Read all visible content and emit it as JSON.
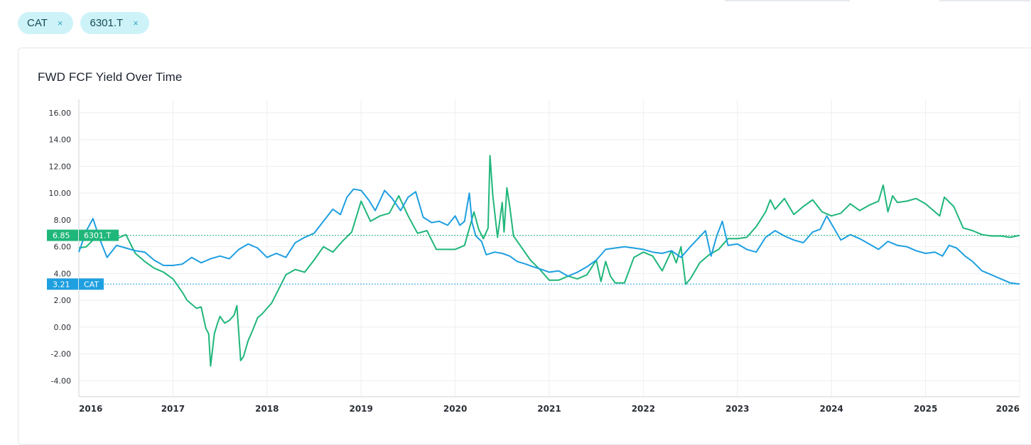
{
  "filters": {
    "chips": [
      {
        "label": "CAT"
      },
      {
        "label": "6301.T"
      }
    ],
    "close_glyph": "×"
  },
  "card": {
    "title": "FWD FCF Yield Over Time"
  },
  "chart_data": {
    "type": "line",
    "title": "FWD FCF Yield Over Time",
    "xlabel": "",
    "ylabel": "",
    "x_ticks": [
      "2016",
      "2017",
      "2018",
      "2019",
      "2020",
      "2021",
      "2022",
      "2023",
      "2024",
      "2025",
      "2026"
    ],
    "y_ticks": [
      "16.00",
      "14.00",
      "12.00",
      "10.00",
      "8.00",
      "6.00",
      "4.00",
      "2.00",
      "0.00",
      "-2.00",
      "-4.00"
    ],
    "xlim": [
      2016.0,
      2026.0
    ],
    "ylim": [
      -5.2,
      17.0
    ],
    "grid": true,
    "legend": "none",
    "series": [
      {
        "name": "CAT",
        "color": "#1e9fe0",
        "last_value": "3.21",
        "x": [
          2016.0,
          2016.08,
          2016.15,
          2016.22,
          2016.3,
          2016.4,
          2016.5,
          2016.6,
          2016.7,
          2016.8,
          2016.9,
          2017.0,
          2017.1,
          2017.2,
          2017.3,
          2017.4,
          2017.5,
          2017.6,
          2017.7,
          2017.8,
          2017.9,
          2018.0,
          2018.1,
          2018.2,
          2018.3,
          2018.4,
          2018.5,
          2018.6,
          2018.7,
          2018.78,
          2018.85,
          2018.92,
          2019.0,
          2019.08,
          2019.15,
          2019.25,
          2019.33,
          2019.42,
          2019.5,
          2019.58,
          2019.66,
          2019.75,
          2019.83,
          2019.92,
          2020.0,
          2020.05,
          2020.1,
          2020.15,
          2020.18,
          2020.22,
          2020.28,
          2020.33,
          2020.42,
          2020.5,
          2020.58,
          2020.66,
          2020.75,
          2020.83,
          2020.92,
          2021.0,
          2021.1,
          2021.2,
          2021.3,
          2021.4,
          2021.5,
          2021.6,
          2021.7,
          2021.8,
          2021.9,
          2022.0,
          2022.1,
          2022.2,
          2022.3,
          2022.4,
          2022.5,
          2022.58,
          2022.66,
          2022.72,
          2022.78,
          2022.84,
          2022.9,
          2023.0,
          2023.1,
          2023.2,
          2023.3,
          2023.4,
          2023.5,
          2023.6,
          2023.7,
          2023.8,
          2023.88,
          2023.95,
          2024.0,
          2024.1,
          2024.2,
          2024.3,
          2024.4,
          2024.5,
          2024.6,
          2024.7,
          2024.8,
          2024.9,
          2025.0,
          2025.1,
          2025.18,
          2025.25,
          2025.33,
          2025.42,
          2025.5,
          2025.6,
          2025.7,
          2025.8,
          2025.9,
          2026.0
        ],
        "y": [
          5.6,
          7.2,
          8.1,
          6.6,
          5.2,
          6.1,
          5.9,
          5.7,
          5.6,
          5.0,
          4.6,
          4.6,
          4.7,
          5.2,
          4.8,
          5.1,
          5.3,
          5.1,
          5.8,
          6.2,
          5.9,
          5.2,
          5.5,
          5.2,
          6.3,
          6.7,
          7.0,
          7.9,
          8.8,
          8.4,
          9.7,
          10.3,
          10.2,
          9.5,
          8.7,
          10.2,
          9.6,
          8.7,
          9.7,
          10.1,
          8.2,
          7.8,
          7.9,
          7.6,
          8.3,
          7.6,
          7.9,
          10.0,
          7.8,
          6.8,
          6.4,
          5.4,
          5.6,
          5.5,
          5.3,
          4.9,
          4.7,
          4.5,
          4.3,
          4.1,
          4.2,
          3.8,
          4.1,
          4.5,
          5.0,
          5.8,
          5.9,
          6.0,
          5.9,
          5.8,
          5.6,
          5.5,
          5.7,
          5.2,
          6.0,
          6.6,
          7.2,
          5.3,
          6.8,
          7.9,
          6.1,
          6.2,
          5.8,
          5.6,
          6.7,
          7.2,
          6.8,
          6.5,
          6.3,
          7.1,
          7.3,
          8.3,
          7.7,
          6.5,
          6.9,
          6.6,
          6.2,
          5.8,
          6.4,
          6.1,
          6.0,
          5.7,
          5.5,
          5.6,
          5.3,
          6.1,
          5.9,
          5.3,
          4.9,
          4.2,
          3.9,
          3.6,
          3.3,
          3.21
        ]
      },
      {
        "name": "6301.T",
        "color": "#1fb67a",
        "last_value": "6.85",
        "x": [
          2016.0,
          2016.08,
          2016.15,
          2016.22,
          2016.3,
          2016.4,
          2016.5,
          2016.6,
          2016.7,
          2016.8,
          2016.9,
          2017.0,
          2017.05,
          2017.1,
          2017.15,
          2017.2,
          2017.25,
          2017.3,
          2017.35,
          2017.38,
          2017.4,
          2017.44,
          2017.47,
          2017.5,
          2017.55,
          2017.6,
          2017.65,
          2017.68,
          2017.72,
          2017.75,
          2017.8,
          2017.85,
          2017.9,
          2017.95,
          2018.0,
          2018.05,
          2018.1,
          2018.15,
          2018.2,
          2018.3,
          2018.4,
          2018.5,
          2018.6,
          2018.7,
          2018.8,
          2018.9,
          2019.0,
          2019.1,
          2019.2,
          2019.3,
          2019.4,
          2019.5,
          2019.6,
          2019.7,
          2019.8,
          2019.9,
          2020.0,
          2020.1,
          2020.2,
          2020.25,
          2020.3,
          2020.35,
          2020.37,
          2020.4,
          2020.45,
          2020.5,
          2020.52,
          2020.55,
          2020.58,
          2020.62,
          2020.7,
          2020.8,
          2020.9,
          2021.0,
          2021.1,
          2021.2,
          2021.3,
          2021.4,
          2021.5,
          2021.55,
          2021.6,
          2021.65,
          2021.7,
          2021.8,
          2021.9,
          2022.0,
          2022.1,
          2022.2,
          2022.3,
          2022.35,
          2022.4,
          2022.45,
          2022.5,
          2022.6,
          2022.7,
          2022.8,
          2022.9,
          2023.0,
          2023.1,
          2023.2,
          2023.3,
          2023.35,
          2023.4,
          2023.5,
          2023.6,
          2023.7,
          2023.8,
          2023.9,
          2024.0,
          2024.1,
          2024.2,
          2024.3,
          2024.4,
          2024.5,
          2024.55,
          2024.6,
          2024.65,
          2024.7,
          2024.8,
          2024.9,
          2025.0,
          2025.1,
          2025.15,
          2025.2,
          2025.3,
          2025.4,
          2025.5,
          2025.6,
          2025.7,
          2025.8,
          2025.9,
          2026.0
        ],
        "y": [
          5.9,
          6.0,
          6.5,
          6.9,
          7.1,
          6.6,
          6.9,
          5.5,
          4.9,
          4.4,
          4.1,
          3.6,
          3.1,
          2.6,
          2.0,
          1.7,
          1.4,
          1.5,
          -0.1,
          -0.5,
          -2.9,
          -0.5,
          0.2,
          0.8,
          0.3,
          0.5,
          0.9,
          1.6,
          -2.5,
          -2.2,
          -1.0,
          -0.2,
          0.7,
          1.0,
          1.4,
          1.8,
          2.5,
          3.2,
          3.9,
          4.3,
          4.1,
          5.0,
          6.0,
          5.6,
          6.4,
          7.1,
          9.4,
          7.9,
          8.3,
          8.5,
          9.8,
          8.3,
          7.0,
          7.2,
          5.8,
          5.8,
          5.8,
          6.1,
          8.6,
          7.3,
          6.6,
          7.4,
          12.8,
          9.8,
          6.7,
          9.3,
          7.1,
          10.4,
          9.0,
          6.8,
          6.0,
          5.0,
          4.3,
          3.5,
          3.5,
          3.8,
          3.6,
          3.9,
          5.0,
          3.4,
          4.9,
          3.8,
          3.3,
          3.3,
          5.2,
          5.6,
          5.3,
          4.2,
          5.7,
          4.8,
          6.0,
          3.2,
          3.6,
          4.8,
          5.4,
          5.8,
          6.6,
          6.6,
          6.7,
          7.5,
          8.6,
          9.5,
          8.8,
          9.6,
          8.4,
          9.0,
          9.5,
          8.6,
          8.3,
          8.5,
          9.2,
          8.7,
          9.1,
          9.4,
          10.6,
          8.6,
          9.8,
          9.3,
          9.4,
          9.6,
          9.2,
          8.6,
          8.3,
          9.7,
          9.0,
          7.4,
          7.2,
          6.9,
          6.8,
          6.8,
          6.7,
          6.85
        ]
      }
    ]
  }
}
